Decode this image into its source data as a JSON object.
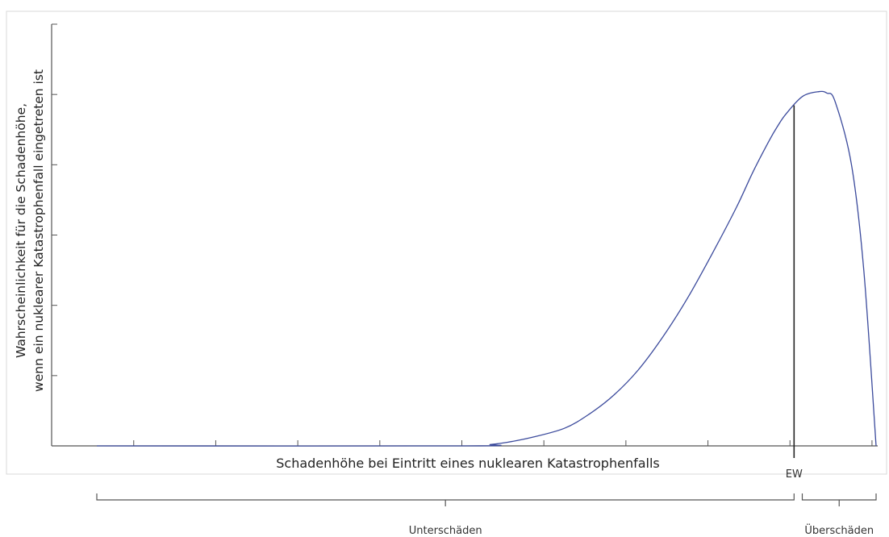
{
  "chart_data": {
    "type": "line",
    "title": "",
    "ylabel_lines": [
      "Wahrscheinlichkeit für die Schadenhöhe,",
      "wenn ein nuklearer Katastrophenfall eingetreten ist"
    ],
    "xlabel": "Schadenhöhe bei Eintritt eines nuklearen Katastrophenfalls",
    "series": [
      {
        "color": "#3b4a9c",
        "x": [
          0,
          4.5,
          4.8,
          5.0,
          5.3,
          5.7,
          6.0,
          6.3,
          6.6,
          6.9,
          7.2,
          7.5,
          7.8,
          8.0,
          8.2,
          8.3,
          8.4,
          8.6,
          8.8,
          8.9,
          9.0,
          9.2,
          9.35,
          9.5
        ],
        "y": [
          0,
          0,
          0.02,
          0.05,
          0.12,
          0.25,
          0.45,
          0.72,
          1.08,
          1.55,
          2.1,
          2.73,
          3.4,
          3.9,
          4.35,
          4.55,
          4.72,
          4.97,
          5.04,
          5.02,
          4.9,
          4.0,
          2.5,
          0
        ]
      }
    ],
    "xlim": [
      0,
      9.5
    ],
    "ylim": [
      0,
      6
    ],
    "ew_marker": {
      "x": 8.5,
      "label": "EW"
    },
    "regions": [
      {
        "label": "Unterschäden",
        "from": 0,
        "to": 8.5
      },
      {
        "label": "Überschäden",
        "from": 8.6,
        "to": 9.5
      }
    ],
    "grid": false,
    "legend": "none"
  }
}
